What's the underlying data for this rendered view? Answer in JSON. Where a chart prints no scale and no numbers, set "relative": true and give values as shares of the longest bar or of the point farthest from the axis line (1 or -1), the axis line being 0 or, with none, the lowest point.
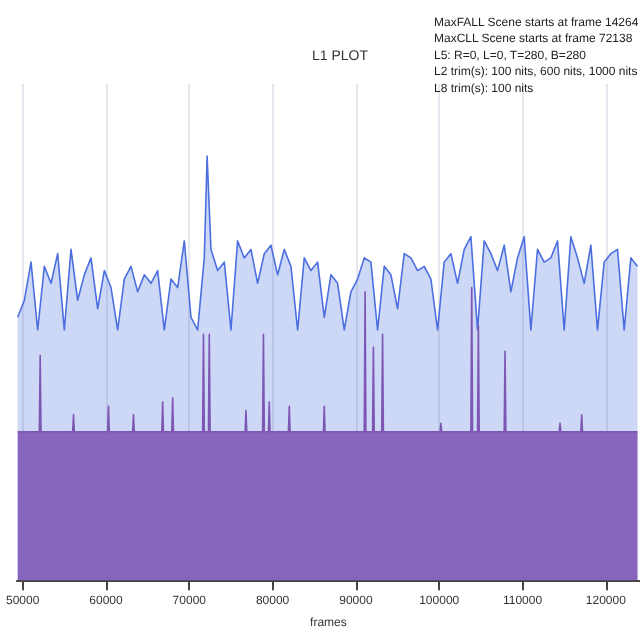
{
  "chart_data": {
    "type": "area",
    "title": "L1 PLOT",
    "xlabel": "frames",
    "relative": true,
    "grid": "x",
    "marker": "none",
    "annotations": [
      "MaxFALL Scene starts at frame 14264",
      "MaxCLL Scene starts at frame 72138",
      "L5: R=0, L=0, T=280, B=280",
      "L2 trim(s): 100 nits, 600 nits, 1000 nits",
      "L8 trim(s): 100 nits"
    ],
    "xlim": [
      49300,
      124100
    ],
    "xticks": [
      50000,
      60000,
      70000,
      80000,
      90000,
      100000,
      110000,
      120000
    ],
    "series": [
      {
        "color": "#4c6fe0",
        "x": [
          49400,
          50200,
          51000,
          51800,
          52600,
          53400,
          54200,
          55000,
          55800,
          56600,
          57400,
          58200,
          59000,
          59800,
          60600,
          61400,
          62200,
          63000,
          63800,
          64600,
          65400,
          66200,
          67000,
          67800,
          68600,
          69400,
          70200,
          71000,
          71800,
          72138,
          72600,
          73400,
          74200,
          75000,
          75800,
          76600,
          77400,
          78200,
          79000,
          79800,
          80600,
          81400,
          82200,
          83000,
          83800,
          84600,
          85400,
          86200,
          87000,
          87800,
          88600,
          89400,
          90200,
          91000,
          91800,
          92600,
          93400,
          94200,
          95000,
          95800,
          96600,
          97400,
          98200,
          99000,
          99800,
          100600,
          101400,
          102200,
          103000,
          103800,
          104600,
          105400,
          106200,
          107000,
          107800,
          108600,
          109400,
          110200,
          111000,
          111800,
          112600,
          113400,
          114200,
          115000,
          115800,
          116600,
          117400,
          118200,
          119000,
          119800,
          120600,
          121400,
          122200,
          123000,
          123800
        ],
        "values": [
          0.62,
          0.66,
          0.75,
          0.59,
          0.74,
          0.7,
          0.77,
          0.59,
          0.78,
          0.66,
          0.72,
          0.76,
          0.64,
          0.73,
          0.69,
          0.59,
          0.71,
          0.74,
          0.68,
          0.72,
          0.7,
          0.73,
          0.59,
          0.71,
          0.69,
          0.8,
          0.62,
          0.59,
          0.76,
          1.0,
          0.78,
          0.73,
          0.75,
          0.59,
          0.8,
          0.76,
          0.78,
          0.7,
          0.77,
          0.79,
          0.72,
          0.78,
          0.74,
          0.59,
          0.76,
          0.73,
          0.75,
          0.62,
          0.72,
          0.7,
          0.59,
          0.68,
          0.71,
          0.76,
          0.75,
          0.59,
          0.74,
          0.72,
          0.64,
          0.77,
          0.76,
          0.73,
          0.74,
          0.71,
          0.59,
          0.75,
          0.77,
          0.7,
          0.78,
          0.81,
          0.59,
          0.8,
          0.77,
          0.73,
          0.79,
          0.68,
          0.76,
          0.81,
          0.59,
          0.78,
          0.75,
          0.76,
          0.8,
          0.59,
          0.81,
          0.76,
          0.7,
          0.79,
          0.59,
          0.75,
          0.77,
          0.78,
          0.59,
          0.76,
          0.74
        ]
      },
      {
        "color": "#7e57b5",
        "x": [
          49400,
          52000,
          52100,
          52200,
          56000,
          56100,
          56200,
          60200,
          60300,
          60400,
          63200,
          63300,
          63400,
          66700,
          66800,
          66900,
          67900,
          68000,
          68100,
          71600,
          71700,
          71800,
          72300,
          72400,
          72500,
          76700,
          76800,
          76900,
          78800,
          78900,
          79000,
          79500,
          79600,
          79700,
          81900,
          82000,
          82100,
          86100,
          86200,
          86300,
          91000,
          91100,
          91200,
          92000,
          92100,
          92200,
          93100,
          93200,
          93300,
          100100,
          100200,
          100300,
          103800,
          103900,
          104000,
          104600,
          104700,
          104800,
          107800,
          107900,
          108000,
          114400,
          114500,
          114600,
          117000,
          117100,
          117200,
          123800
        ],
        "values": [
          0.35,
          0.35,
          0.53,
          0.35,
          0.35,
          0.39,
          0.35,
          0.35,
          0.41,
          0.35,
          0.35,
          0.39,
          0.35,
          0.35,
          0.42,
          0.35,
          0.35,
          0.43,
          0.35,
          0.35,
          0.58,
          0.35,
          0.35,
          0.58,
          0.35,
          0.35,
          0.4,
          0.35,
          0.35,
          0.58,
          0.35,
          0.35,
          0.42,
          0.35,
          0.35,
          0.41,
          0.35,
          0.35,
          0.41,
          0.35,
          0.35,
          0.68,
          0.35,
          0.35,
          0.55,
          0.35,
          0.35,
          0.58,
          0.35,
          0.35,
          0.37,
          0.35,
          0.35,
          0.69,
          0.35,
          0.35,
          0.6,
          0.35,
          0.35,
          0.54,
          0.35,
          0.35,
          0.37,
          0.35,
          0.35,
          0.39,
          0.35,
          0.35
        ]
      }
    ]
  }
}
